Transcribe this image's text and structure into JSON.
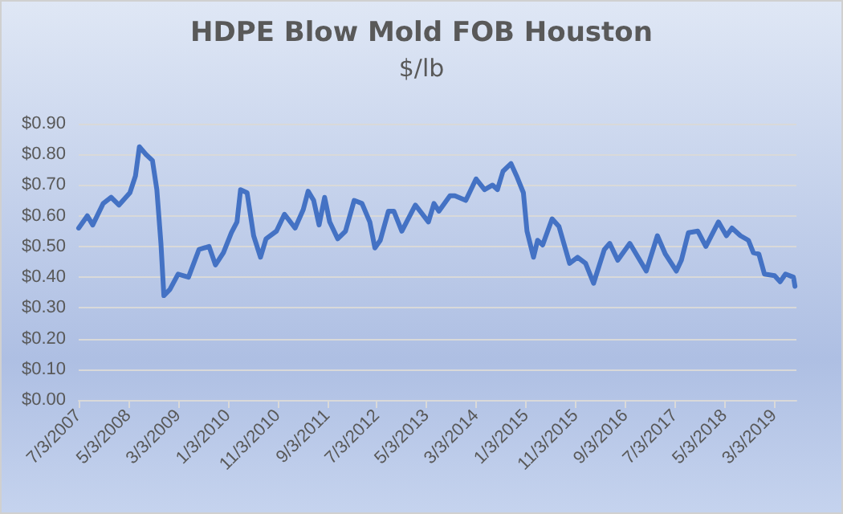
{
  "chart_data": {
    "type": "line",
    "title": "HDPE Blow Mold FOB Houston",
    "subtitle": "$/lb",
    "x": [
      "2007-07-03",
      "2007-08-25",
      "2007-09-27",
      "2007-11-30",
      "2008-01-18",
      "2008-03-06",
      "2008-05-12",
      "2008-06-15",
      "2008-07-09",
      "2008-08-18",
      "2008-09-27",
      "2008-10-24",
      "2008-11-18",
      "2008-12-06",
      "2009-01-12",
      "2009-03-03",
      "2009-05-06",
      "2009-07-09",
      "2009-09-09",
      "2009-10-18",
      "2009-12-06",
      "2010-01-24",
      "2010-02-27",
      "2010-03-21",
      "2010-04-30",
      "2010-06-09",
      "2010-07-21",
      "2010-08-24",
      "2010-10-27",
      "2010-12-15",
      "2011-02-18",
      "2011-04-09",
      "2011-05-09",
      "2011-06-12",
      "2011-07-15",
      "2011-08-18",
      "2011-09-18",
      "2011-11-06",
      "2011-12-24",
      "2012-02-15",
      "2012-04-03",
      "2012-05-21",
      "2012-06-21",
      "2012-07-24",
      "2012-09-12",
      "2012-10-15",
      "2012-12-03",
      "2013-02-24",
      "2013-05-15",
      "2013-06-18",
      "2013-07-18",
      "2013-09-24",
      "2013-10-24",
      "2013-12-30",
      "2014-03-03",
      "2014-04-24",
      "2014-06-12",
      "2014-07-12",
      "2014-08-15",
      "2014-10-03",
      "2014-11-06",
      "2014-12-18",
      "2015-01-09",
      "2015-02-18",
      "2015-03-15",
      "2015-04-15",
      "2015-06-12",
      "2015-07-24",
      "2015-09-27",
      "2015-11-15",
      "2016-01-03",
      "2016-02-21",
      "2016-04-27",
      "2016-05-30",
      "2016-07-18",
      "2016-09-30",
      "2017-01-09",
      "2017-03-18",
      "2017-05-06",
      "2017-07-12",
      "2017-08-12",
      "2017-09-24",
      "2017-11-21",
      "2018-01-09",
      "2018-03-27",
      "2018-05-15",
      "2018-06-18",
      "2018-08-09",
      "2018-09-27",
      "2018-10-27",
      "2018-11-30",
      "2019-01-03",
      "2019-03-06",
      "2019-04-09",
      "2019-05-12",
      "2019-06-30",
      "2019-07-09"
    ],
    "series": [
      {
        "color": "#4472c4",
        "values": [
          0.56,
          0.6,
          0.57,
          0.64,
          0.66,
          0.635,
          0.675,
          0.73,
          0.825,
          0.8,
          0.78,
          0.685,
          0.51,
          0.34,
          0.36,
          0.41,
          0.4,
          0.49,
          0.5,
          0.44,
          0.48,
          0.545,
          0.58,
          0.685,
          0.675,
          0.535,
          0.465,
          0.525,
          0.55,
          0.605,
          0.56,
          0.62,
          0.68,
          0.65,
          0.57,
          0.66,
          0.58,
          0.525,
          0.55,
          0.65,
          0.64,
          0.58,
          0.495,
          0.52,
          0.615,
          0.615,
          0.55,
          0.635,
          0.58,
          0.64,
          0.615,
          0.665,
          0.665,
          0.65,
          0.72,
          0.685,
          0.7,
          0.685,
          0.745,
          0.77,
          0.73,
          0.675,
          0.55,
          0.465,
          0.52,
          0.505,
          0.59,
          0.565,
          0.445,
          0.465,
          0.445,
          0.38,
          0.49,
          0.51,
          0.455,
          0.51,
          0.42,
          0.535,
          0.475,
          0.42,
          0.455,
          0.545,
          0.55,
          0.5,
          0.58,
          0.535,
          0.56,
          0.535,
          0.52,
          0.48,
          0.475,
          0.41,
          0.405,
          0.385,
          0.41,
          0.4,
          0.37
        ]
      }
    ],
    "xlim": [
      "2007-07-03",
      "2019-07-18"
    ],
    "xticks": [
      {
        "value": "2007-07-03",
        "label": "7/3/2007"
      },
      {
        "value": "2008-05-03",
        "label": "5/3/2008"
      },
      {
        "value": "2009-03-03",
        "label": "3/3/2009"
      },
      {
        "value": "2010-01-03",
        "label": "1/3/2010"
      },
      {
        "value": "2010-11-03",
        "label": "11/3/2010"
      },
      {
        "value": "2011-09-03",
        "label": "9/3/2011"
      },
      {
        "value": "2012-07-03",
        "label": "7/3/2012"
      },
      {
        "value": "2013-05-03",
        "label": "5/3/2013"
      },
      {
        "value": "2014-03-03",
        "label": "3/3/2014"
      },
      {
        "value": "2015-01-03",
        "label": "1/3/2015"
      },
      {
        "value": "2015-11-03",
        "label": "11/3/2015"
      },
      {
        "value": "2016-09-03",
        "label": "9/3/2016"
      },
      {
        "value": "2017-07-03",
        "label": "7/3/2017"
      },
      {
        "value": "2018-05-03",
        "label": "5/3/2018"
      },
      {
        "value": "2019-03-03",
        "label": "3/3/2019"
      }
    ],
    "ylim": [
      0,
      0.9
    ],
    "yticks": [
      {
        "value": 0,
        "label": "$0.00"
      },
      {
        "value": 0.1,
        "label": "$0.10"
      },
      {
        "value": 0.2,
        "label": "$0.20"
      },
      {
        "value": 0.3,
        "label": "$0.30"
      },
      {
        "value": 0.4,
        "label": "$0.40"
      },
      {
        "value": 0.5,
        "label": "$0.50"
      },
      {
        "value": 0.6,
        "label": "$0.60"
      },
      {
        "value": 0.7,
        "label": "$0.70"
      },
      {
        "value": 0.8,
        "label": "$0.80"
      },
      {
        "value": 0.9,
        "label": "$0.90"
      }
    ],
    "grid": "y",
    "marker": "none",
    "line_style": "solid"
  }
}
